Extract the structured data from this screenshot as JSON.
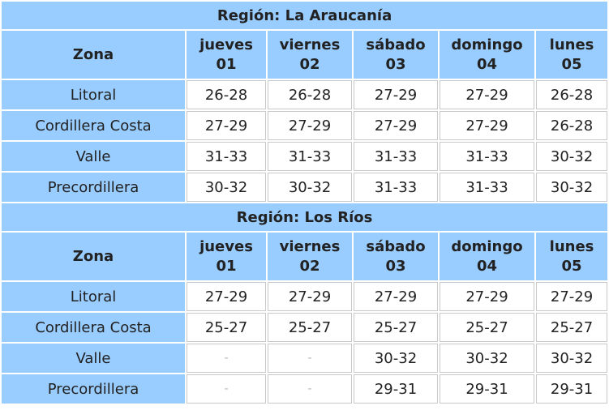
{
  "days": [
    {
      "name": "jueves",
      "num": "01"
    },
    {
      "name": "viernes",
      "num": "02"
    },
    {
      "name": "sábado",
      "num": "03"
    },
    {
      "name": "domingo",
      "num": "04"
    },
    {
      "name": "lunes",
      "num": "05"
    }
  ],
  "zone_header": "Zona",
  "regions": [
    {
      "title": "Región: La Araucanía",
      "rows": [
        {
          "zone": "Litoral",
          "values": [
            "26-28",
            "26-28",
            "27-29",
            "27-29",
            "26-28"
          ]
        },
        {
          "zone": "Cordillera Costa",
          "values": [
            "27-29",
            "27-29",
            "27-29",
            "27-29",
            "26-28"
          ]
        },
        {
          "zone": "Valle",
          "values": [
            "31-33",
            "31-33",
            "31-33",
            "31-33",
            "30-32"
          ]
        },
        {
          "zone": "Precordillera",
          "values": [
            "30-32",
            "30-32",
            "31-33",
            "31-33",
            "30-32"
          ]
        }
      ]
    },
    {
      "title": "Región: Los Ríos",
      "rows": [
        {
          "zone": "Litoral",
          "values": [
            "27-29",
            "27-29",
            "27-29",
            "27-29",
            "27-29"
          ]
        },
        {
          "zone": "Cordillera Costa",
          "values": [
            "25-27",
            "25-27",
            "25-27",
            "25-27",
            "25-27"
          ]
        },
        {
          "zone": "Valle",
          "values": [
            "-",
            "-",
            "30-32",
            "30-32",
            "30-32"
          ]
        },
        {
          "zone": "Precordillera",
          "values": [
            "-",
            "-",
            "29-31",
            "29-31",
            "29-31"
          ]
        }
      ]
    }
  ]
}
